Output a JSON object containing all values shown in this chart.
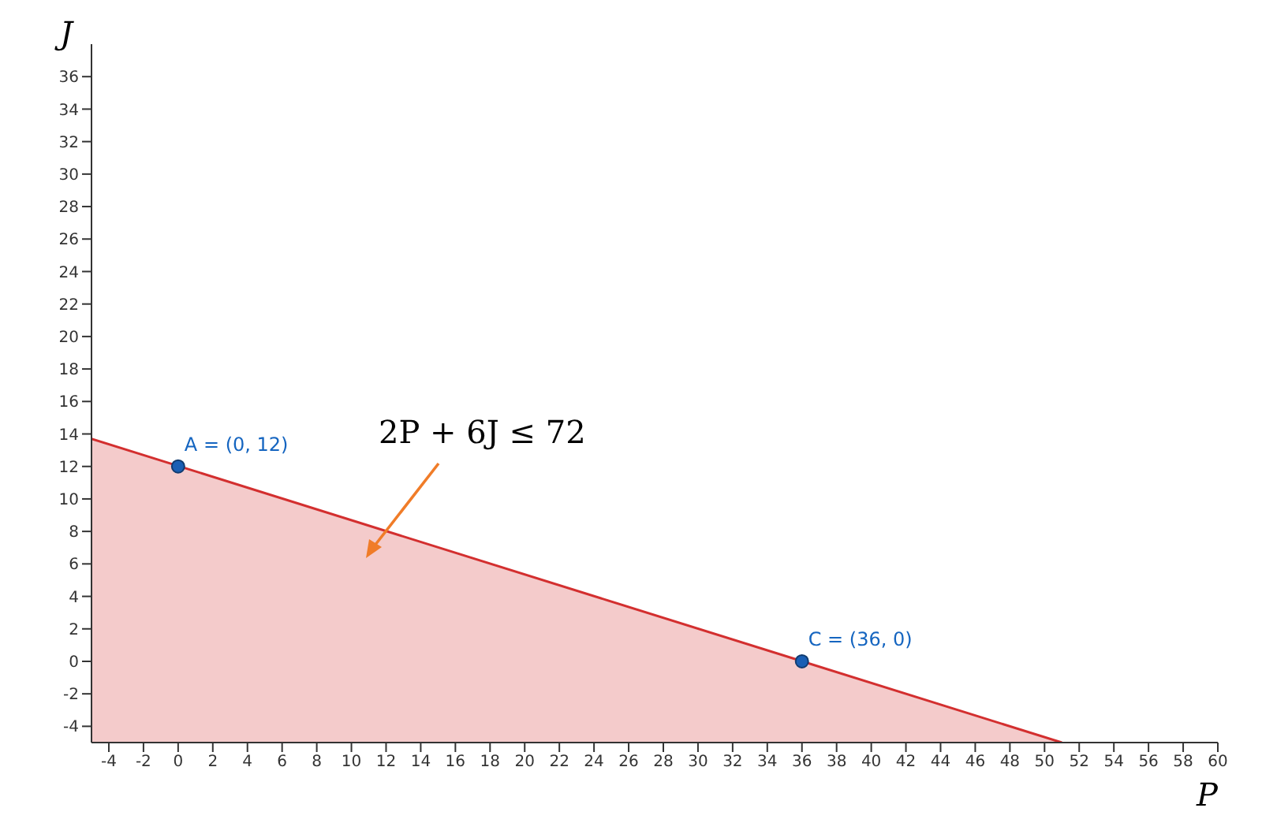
{
  "chart_data": {
    "type": "area",
    "xlabel": "P",
    "ylabel": "J",
    "xlim": [
      -5,
      60
    ],
    "ylim": [
      -5,
      38
    ],
    "xticks": [
      -4,
      -2,
      0,
      2,
      4,
      6,
      8,
      10,
      12,
      14,
      16,
      18,
      20,
      22,
      24,
      26,
      28,
      30,
      32,
      34,
      36,
      38,
      40,
      42,
      44,
      46,
      48,
      50,
      52,
      54,
      56,
      58,
      60
    ],
    "yticks": [
      -4,
      -2,
      0,
      2,
      4,
      6,
      8,
      10,
      12,
      14,
      16,
      18,
      20,
      22,
      24,
      26,
      28,
      30,
      32,
      34,
      36
    ],
    "series": [
      {
        "color": "#d32f2f",
        "x": [
          -5,
          51
        ],
        "values": [
          13.7,
          -5
        ]
      },
      {
        "type": "scatter",
        "color": "#1a5fb4",
        "marker": "circle",
        "x": [
          0,
          36
        ],
        "values": [
          12,
          0
        ]
      }
    ],
    "annotations": [
      {
        "text": "A = (0, 12)",
        "x": 0,
        "y": 12
      },
      {
        "text": "C = (36, 0)",
        "x": 36,
        "y": 0
      },
      "2P + 6J ≤ 72"
    ]
  }
}
